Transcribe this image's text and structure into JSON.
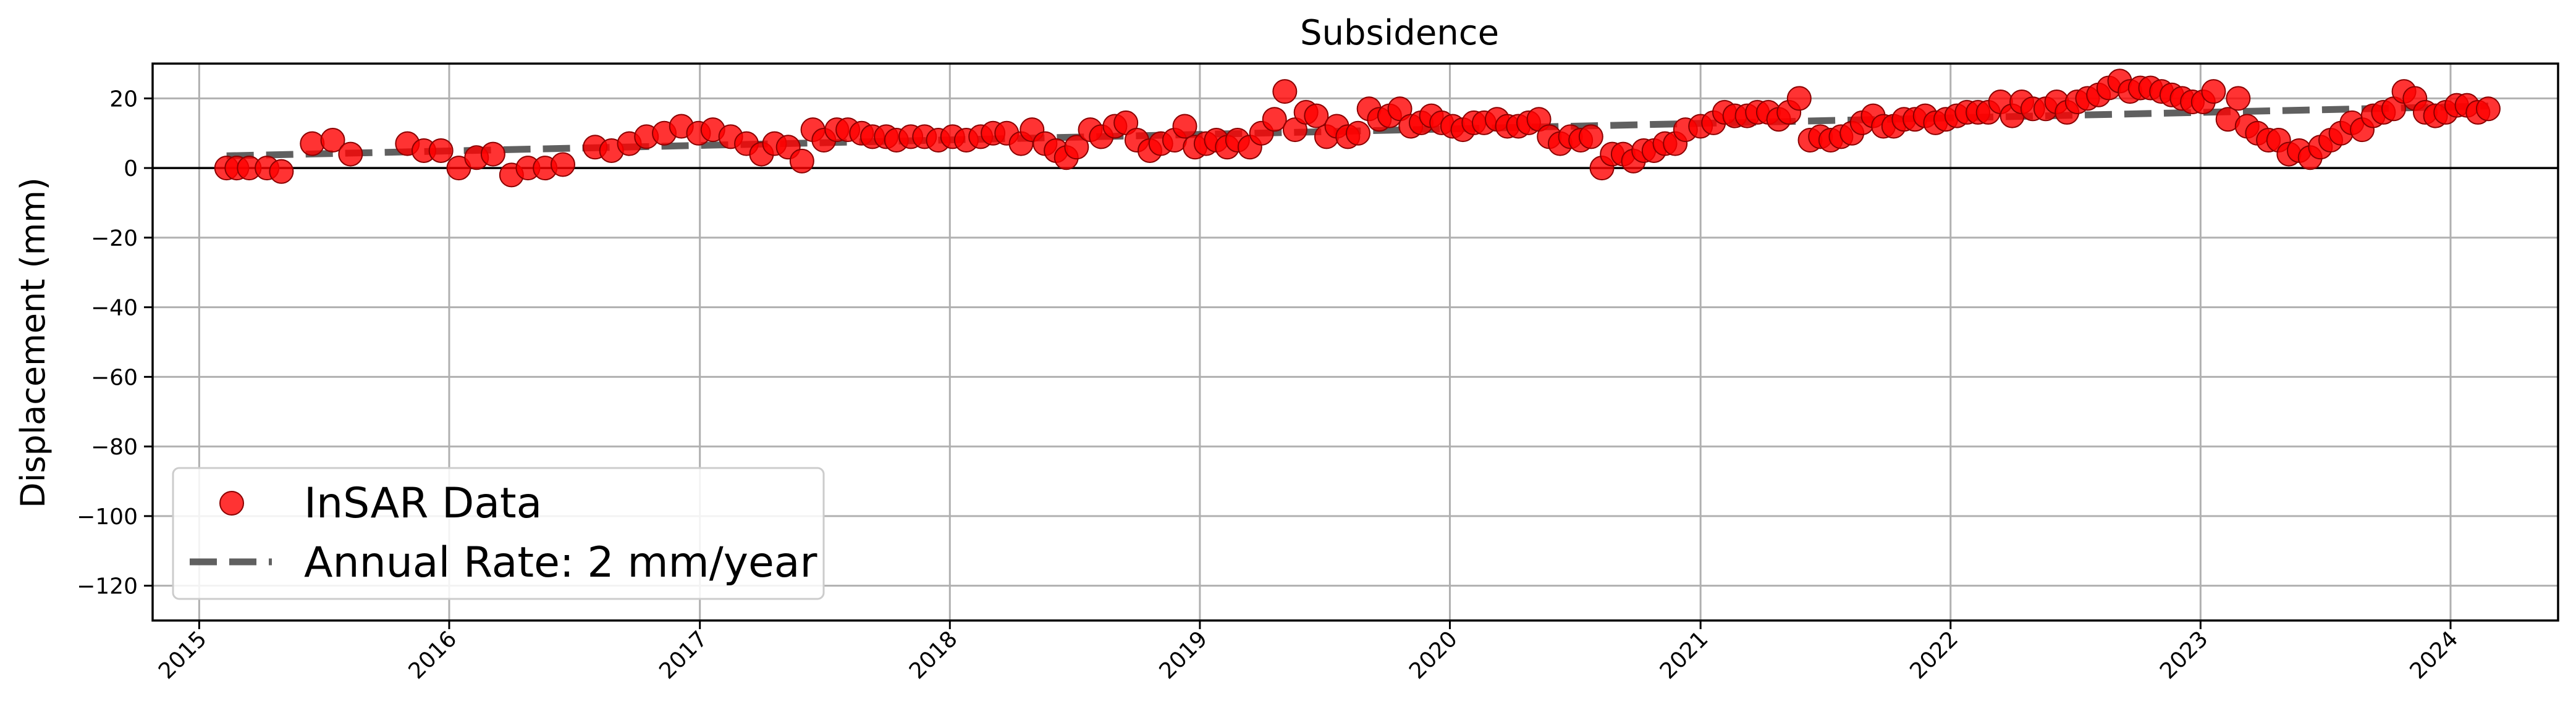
{
  "chart_data": {
    "type": "scatter",
    "title": "Subsidence",
    "xlabel": "",
    "ylabel": "Displacement (mm)",
    "x_type": "date",
    "xlim": [
      "2014-10-25",
      "2024-06-06"
    ],
    "ylim": [
      -130,
      30
    ],
    "x_ticks": [
      "2015",
      "2016",
      "2017",
      "2018",
      "2019",
      "2020",
      "2021",
      "2022",
      "2023",
      "2024"
    ],
    "x_tick_dates": [
      "2015-01-01",
      "2016-01-01",
      "2017-01-01",
      "2018-01-01",
      "2019-01-01",
      "2020-01-01",
      "2021-01-01",
      "2022-01-01",
      "2023-01-01",
      "2024-01-01"
    ],
    "y_ticks": [
      20,
      0,
      -20,
      -40,
      -60,
      -80,
      -100,
      -120
    ],
    "y_tick_labels": [
      "20",
      "0",
      "−20",
      "−40",
      "−60",
      "−80",
      "−100",
      "−120"
    ],
    "grid": true,
    "zero_line": 0,
    "legend": "lower-left",
    "series": [
      {
        "name": "InSAR Data",
        "kind": "scatter",
        "color": "#ff0000",
        "edge_color": "#8b0000",
        "points": [
          [
            "2015-02-10",
            0
          ],
          [
            "2015-02-25",
            0
          ],
          [
            "2015-03-15",
            0
          ],
          [
            "2015-04-10",
            0
          ],
          [
            "2015-05-01",
            -1
          ],
          [
            "2015-06-15",
            7
          ],
          [
            "2015-07-15",
            8
          ],
          [
            "2015-08-10",
            4
          ],
          [
            "2015-11-01",
            7
          ],
          [
            "2015-11-25",
            5
          ],
          [
            "2015-12-20",
            5
          ],
          [
            "2016-01-15",
            0
          ],
          [
            "2016-02-10",
            3
          ],
          [
            "2016-03-05",
            4
          ],
          [
            "2016-04-01",
            -2
          ],
          [
            "2016-04-25",
            0
          ],
          [
            "2016-05-20",
            0
          ],
          [
            "2016-06-15",
            1
          ],
          [
            "2016-08-01",
            6
          ],
          [
            "2016-08-25",
            5
          ],
          [
            "2016-09-20",
            7
          ],
          [
            "2016-10-15",
            9
          ],
          [
            "2016-11-10",
            10
          ],
          [
            "2016-12-05",
            12
          ],
          [
            "2016-12-30",
            10
          ],
          [
            "2017-01-20",
            11
          ],
          [
            "2017-02-15",
            9
          ],
          [
            "2017-03-10",
            7
          ],
          [
            "2017-04-01",
            4
          ],
          [
            "2017-04-20",
            7
          ],
          [
            "2017-05-10",
            6
          ],
          [
            "2017-05-30",
            2
          ],
          [
            "2017-06-15",
            11
          ],
          [
            "2017-07-01",
            8
          ],
          [
            "2017-07-20",
            11
          ],
          [
            "2017-08-05",
            11
          ],
          [
            "2017-08-25",
            10
          ],
          [
            "2017-09-10",
            9
          ],
          [
            "2017-09-30",
            9
          ],
          [
            "2017-10-15",
            8
          ],
          [
            "2017-11-05",
            9
          ],
          [
            "2017-11-25",
            9
          ],
          [
            "2017-12-15",
            8
          ],
          [
            "2018-01-05",
            9
          ],
          [
            "2018-01-25",
            8
          ],
          [
            "2018-02-15",
            9
          ],
          [
            "2018-03-05",
            10
          ],
          [
            "2018-03-25",
            10
          ],
          [
            "2018-04-15",
            7
          ],
          [
            "2018-05-01",
            11
          ],
          [
            "2018-05-20",
            7
          ],
          [
            "2018-06-05",
            5
          ],
          [
            "2018-06-20",
            3
          ],
          [
            "2018-07-05",
            6
          ],
          [
            "2018-07-25",
            11
          ],
          [
            "2018-08-10",
            9
          ],
          [
            "2018-08-30",
            12
          ],
          [
            "2018-09-15",
            13
          ],
          [
            "2018-10-01",
            8
          ],
          [
            "2018-10-20",
            5
          ],
          [
            "2018-11-05",
            7
          ],
          [
            "2018-11-25",
            8
          ],
          [
            "2018-12-10",
            12
          ],
          [
            "2018-12-25",
            6
          ],
          [
            "2019-01-10",
            7
          ],
          [
            "2019-01-25",
            8
          ],
          [
            "2019-02-10",
            6
          ],
          [
            "2019-02-25",
            8
          ],
          [
            "2019-03-15",
            6
          ],
          [
            "2019-04-01",
            10
          ],
          [
            "2019-04-20",
            14
          ],
          [
            "2019-05-05",
            22
          ],
          [
            "2019-05-20",
            11
          ],
          [
            "2019-06-05",
            16
          ],
          [
            "2019-06-20",
            15
          ],
          [
            "2019-07-05",
            9
          ],
          [
            "2019-07-20",
            12
          ],
          [
            "2019-08-05",
            9
          ],
          [
            "2019-08-20",
            10
          ],
          [
            "2019-09-05",
            17
          ],
          [
            "2019-09-20",
            14
          ],
          [
            "2019-10-05",
            15
          ],
          [
            "2019-10-20",
            17
          ],
          [
            "2019-11-05",
            12
          ],
          [
            "2019-11-20",
            13
          ],
          [
            "2019-12-05",
            15
          ],
          [
            "2019-12-20",
            13
          ],
          [
            "2020-01-05",
            12
          ],
          [
            "2020-01-20",
            11
          ],
          [
            "2020-02-05",
            13
          ],
          [
            "2020-02-20",
            13
          ],
          [
            "2020-03-10",
            14
          ],
          [
            "2020-03-25",
            12
          ],
          [
            "2020-04-10",
            12
          ],
          [
            "2020-04-25",
            13
          ],
          [
            "2020-05-10",
            14
          ],
          [
            "2020-05-25",
            9
          ],
          [
            "2020-06-10",
            7
          ],
          [
            "2020-06-25",
            9
          ],
          [
            "2020-07-10",
            8
          ],
          [
            "2020-07-25",
            9
          ],
          [
            "2020-08-10",
            0
          ],
          [
            "2020-08-25",
            4
          ],
          [
            "2020-09-10",
            4
          ],
          [
            "2020-09-25",
            2
          ],
          [
            "2020-10-10",
            5
          ],
          [
            "2020-10-25",
            5
          ],
          [
            "2020-11-10",
            7
          ],
          [
            "2020-11-25",
            7
          ],
          [
            "2020-12-10",
            11
          ],
          [
            "2021-01-01",
            12
          ],
          [
            "2021-01-20",
            13
          ],
          [
            "2021-02-05",
            16
          ],
          [
            "2021-02-20",
            15
          ],
          [
            "2021-03-10",
            15
          ],
          [
            "2021-03-25",
            16
          ],
          [
            "2021-04-10",
            16
          ],
          [
            "2021-04-25",
            14
          ],
          [
            "2021-05-10",
            16
          ],
          [
            "2021-05-25",
            20
          ],
          [
            "2021-06-10",
            8
          ],
          [
            "2021-06-25",
            9
          ],
          [
            "2021-07-10",
            8
          ],
          [
            "2021-07-25",
            9
          ],
          [
            "2021-08-10",
            10
          ],
          [
            "2021-08-25",
            13
          ],
          [
            "2021-09-10",
            15
          ],
          [
            "2021-09-25",
            12
          ],
          [
            "2021-10-10",
            12
          ],
          [
            "2021-10-25",
            14
          ],
          [
            "2021-11-10",
            14
          ],
          [
            "2021-11-25",
            15
          ],
          [
            "2021-12-10",
            13
          ],
          [
            "2021-12-25",
            14
          ],
          [
            "2022-01-10",
            15
          ],
          [
            "2022-01-25",
            16
          ],
          [
            "2022-02-10",
            16
          ],
          [
            "2022-02-25",
            16
          ],
          [
            "2022-03-15",
            19
          ],
          [
            "2022-04-01",
            15
          ],
          [
            "2022-04-15",
            19
          ],
          [
            "2022-05-01",
            17
          ],
          [
            "2022-05-20",
            17
          ],
          [
            "2022-06-05",
            19
          ],
          [
            "2022-06-20",
            16
          ],
          [
            "2022-07-05",
            19
          ],
          [
            "2022-07-20",
            20
          ],
          [
            "2022-08-05",
            21
          ],
          [
            "2022-08-20",
            23
          ],
          [
            "2022-09-05",
            25
          ],
          [
            "2022-09-20",
            22
          ],
          [
            "2022-10-05",
            23
          ],
          [
            "2022-10-20",
            23
          ],
          [
            "2022-11-05",
            22
          ],
          [
            "2022-11-20",
            21
          ],
          [
            "2022-12-05",
            20
          ],
          [
            "2022-12-20",
            19
          ],
          [
            "2023-01-05",
            19
          ],
          [
            "2023-01-20",
            22
          ],
          [
            "2023-02-10",
            14
          ],
          [
            "2023-02-25",
            20
          ],
          [
            "2023-03-10",
            12
          ],
          [
            "2023-03-25",
            10
          ],
          [
            "2023-04-10",
            8
          ],
          [
            "2023-04-25",
            8
          ],
          [
            "2023-05-10",
            4
          ],
          [
            "2023-05-25",
            5
          ],
          [
            "2023-06-10",
            3
          ],
          [
            "2023-06-25",
            6
          ],
          [
            "2023-07-10",
            8
          ],
          [
            "2023-07-25",
            10
          ],
          [
            "2023-08-10",
            13
          ],
          [
            "2023-08-25",
            11
          ],
          [
            "2023-09-10",
            15
          ],
          [
            "2023-09-25",
            16
          ],
          [
            "2023-10-10",
            17
          ],
          [
            "2023-10-25",
            22
          ],
          [
            "2023-11-10",
            20
          ],
          [
            "2023-11-25",
            16
          ],
          [
            "2023-12-10",
            15
          ],
          [
            "2023-12-25",
            16
          ],
          [
            "2024-01-10",
            18
          ],
          [
            "2024-01-25",
            18
          ],
          [
            "2024-02-10",
            16
          ],
          [
            "2024-02-25",
            17
          ]
        ]
      },
      {
        "name": "Annual Rate: 2 mm/year",
        "kind": "line",
        "style": "dashed",
        "color": "#444444",
        "points": [
          [
            "2015-02-10",
            3.5
          ],
          [
            "2024-02-25",
            17.8
          ]
        ]
      }
    ]
  }
}
